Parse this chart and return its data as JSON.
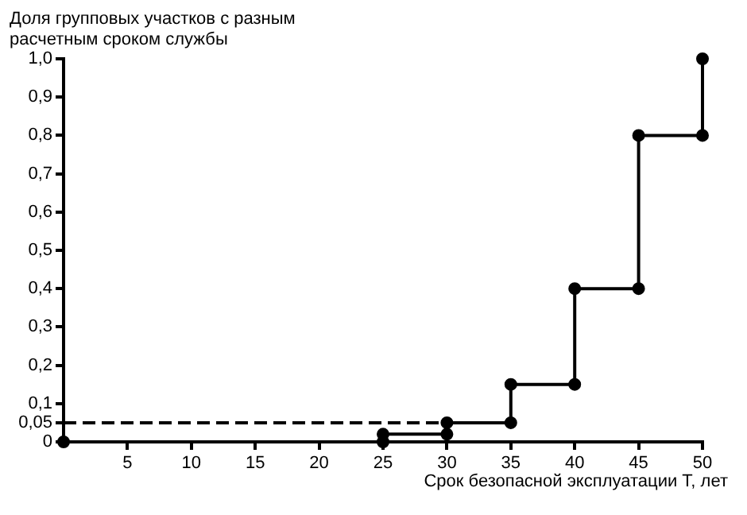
{
  "chart_data": {
    "type": "line",
    "xlabel": "Срок безопасной эксплуатации T, лет",
    "ylabel": "Доля групповых участков с разным расчетным сроком службы",
    "xlim": [
      0,
      50
    ],
    "ylim": [
      0,
      1
    ],
    "xticks": [
      5,
      10,
      15,
      20,
      25,
      30,
      35,
      40,
      45,
      50
    ],
    "yticks": [
      {
        "value": 0,
        "label": "0"
      },
      {
        "value": 0.05,
        "label": "0,05"
      },
      {
        "value": 0.1,
        "label": "0,1"
      },
      {
        "value": 0.2,
        "label": "0,2"
      },
      {
        "value": 0.3,
        "label": "0,3"
      },
      {
        "value": 0.4,
        "label": "0,4"
      },
      {
        "value": 0.5,
        "label": "0,5"
      },
      {
        "value": 0.6,
        "label": "0,6"
      },
      {
        "value": 0.7,
        "label": "0,7"
      },
      {
        "value": 0.8,
        "label": "0,8"
      },
      {
        "value": 0.9,
        "label": "0,9"
      },
      {
        "value": 1,
        "label": "1,0"
      }
    ],
    "series": [
      {
        "color": "#000000",
        "line_style": "dashed",
        "x": [
          0,
          30
        ],
        "values": [
          0.05,
          0.05
        ]
      },
      {
        "color": "#000000",
        "marker": "circle",
        "line_style": "solid",
        "x": [
          0,
          25,
          25,
          30,
          30,
          35,
          35,
          40,
          40,
          45,
          45,
          50,
          50
        ],
        "values": [
          0,
          0,
          0.02,
          0.02,
          0.05,
          0.05,
          0.15,
          0.15,
          0.4,
          0.4,
          0.8,
          0.8,
          1
        ]
      }
    ]
  }
}
